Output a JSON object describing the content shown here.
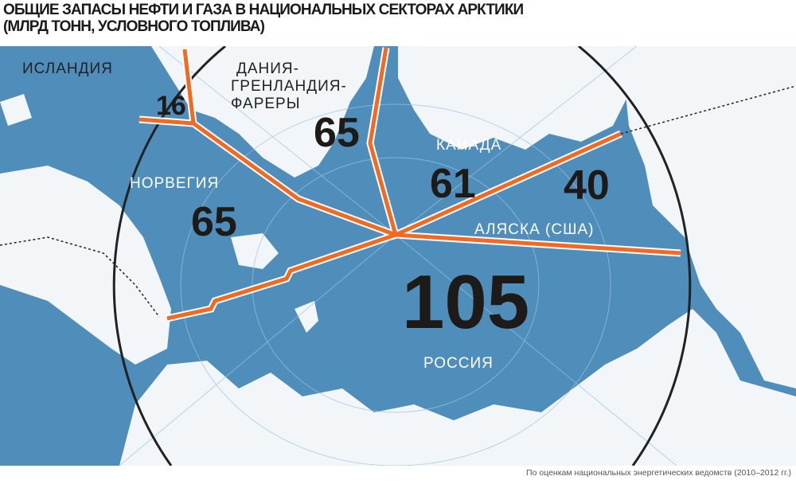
{
  "title": {
    "line1": "ОБЩИЕ ЗАПАСЫ НЕФТИ И ГАЗА В НАЦИОНАЛЬНЫХ СЕКТОРАХ АРКТИКИ",
    "line2": "(МЛРД ТОНН, УСЛОВНОГО ТОПЛИВА)"
  },
  "colors": {
    "sea": "#4f8dbb",
    "land": "#f2f6f9",
    "boundary": "#f26a21"
  },
  "sectors": [
    {
      "name": "ИСЛАНДИЯ",
      "value": "16"
    },
    {
      "name_lines": [
        "ДАНИЯ-",
        "ГРЕНЛАНДИЯ-",
        "ФАРЕРЫ"
      ],
      "value": "65"
    },
    {
      "name": "НОРВЕГИЯ",
      "value": "65"
    },
    {
      "name": "КАНАДА",
      "value": "61"
    },
    {
      "name": "АЛЯСКА (США)",
      "value": "40"
    },
    {
      "name": "РОССИЯ",
      "value": "105"
    }
  ],
  "footer": "По оценкам национальных энергетических ведомств (2010–2012 гг.)"
}
